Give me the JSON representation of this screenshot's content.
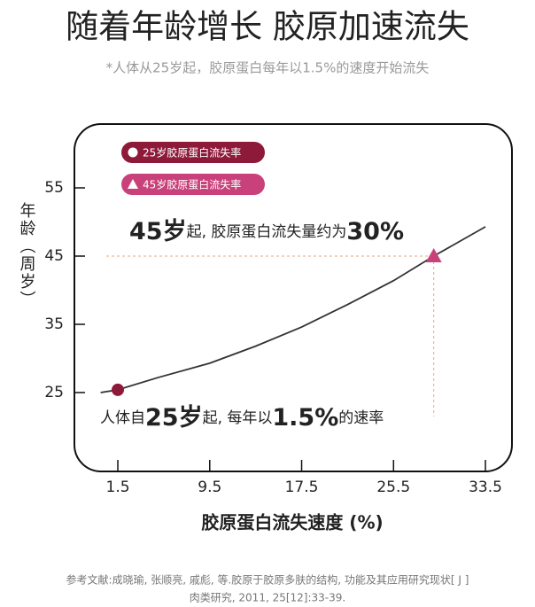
{
  "chart_data": {
    "type": "line",
    "title": "随着年龄增长 胶原加速流失",
    "subtitle": "*人体从25岁起，胶原蛋白每年以1.5%的速度开始流失",
    "x_label": "胶原蛋白流失速度 (%)",
    "y_label": "年龄（周岁）",
    "xlim": [
      -1,
      35
    ],
    "xticks": [
      1.5,
      9.5,
      17.5,
      25.5,
      33.5
    ],
    "ylim": [
      15,
      65
    ],
    "yticks": [
      25,
      35,
      45,
      55
    ],
    "curve": {
      "color": "#333333",
      "x": [
        0,
        1.5,
        5,
        9.5,
        13.5,
        17.5,
        21.5,
        25.5,
        29,
        33.5
      ],
      "values": [
        25,
        25.4,
        27.2,
        29.3,
        31.8,
        34.6,
        37.9,
        41.4,
        45,
        49.3
      ]
    },
    "series": [
      {
        "name": "25岁胶原蛋白流失率",
        "color": "#8e1a3a",
        "marker": "circle",
        "x": [
          1.5
        ],
        "values": [
          25.4
        ]
      },
      {
        "name": "45岁胶原蛋白流失率",
        "color": "#c9417a",
        "marker": "triangle",
        "x": [
          29
        ],
        "values": [
          45
        ]
      }
    ],
    "guide_color": "#e8a77e",
    "annotations": [
      {
        "parts": [
          "45岁",
          "起, 胶原蛋白流失量约为",
          "30%"
        ]
      },
      {
        "parts": [
          "人体自",
          "25岁",
          "起, 每年以",
          "1.5%",
          "的速率"
        ]
      }
    ]
  },
  "reference": [
    "参考文献:成晓瑜, 张顺亮, 戚彪, 等.胶原于胶原多肤的结构, 功能及其应用研究现状[ J ]",
    "肉类研究, 2011, 25[12]:33-39."
  ]
}
